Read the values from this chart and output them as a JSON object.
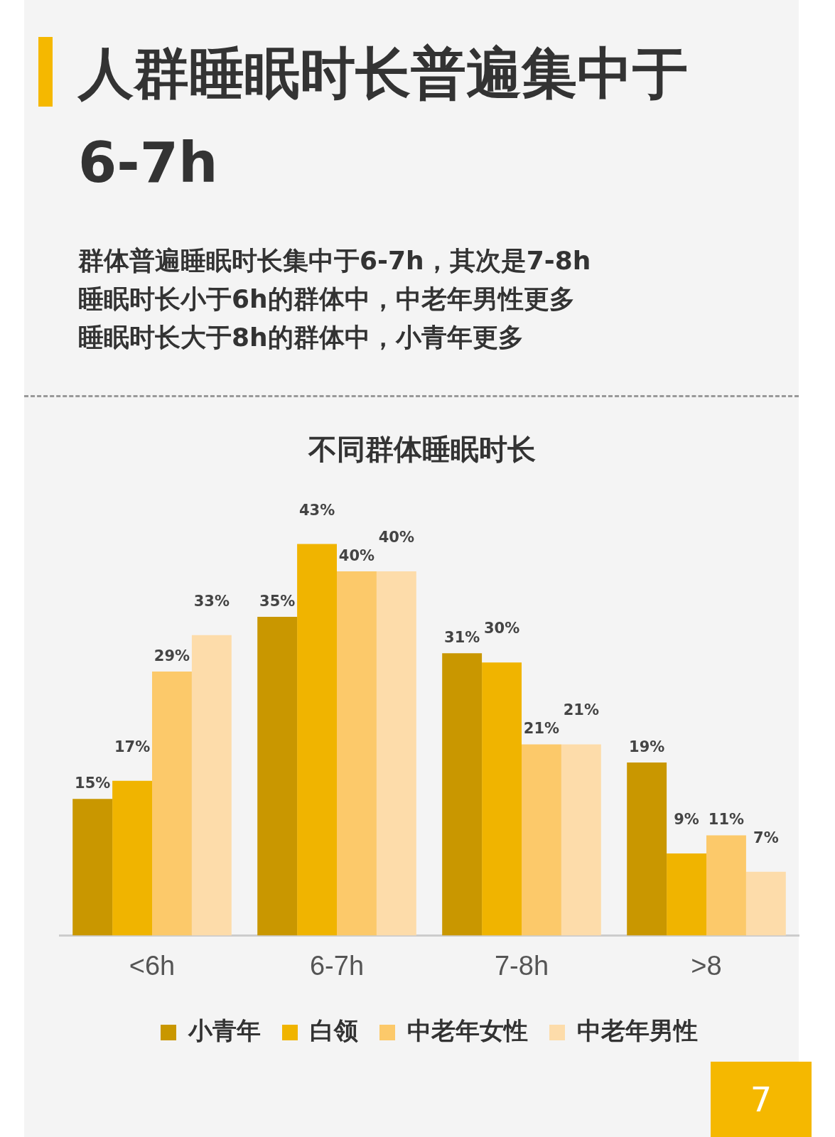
{
  "chart_data": {
    "type": "bar",
    "title": "人群睡眠时长普遍集中于6-7h",
    "annotations": [
      "群体普遍睡眠时长集中于6-7h，其次是7-8h",
      "睡眠时长小于6h的群体中，中老年男性更多",
      "睡眠时长大于8h的群体中，小青年更多",
      "不同群体睡眠时长",
      "7"
    ],
    "categories": [
      "<6h",
      "6-7h",
      "7-8h",
      ">8"
    ],
    "series": [
      {
        "name": "小青年",
        "color": "#c99700",
        "values": [
          15,
          35,
          31,
          19
        ],
        "value_labels": [
          "15%",
          "35%",
          "31%",
          "19%"
        ]
      },
      {
        "name": "白领",
        "color": "#f0b400",
        "values": [
          17,
          43,
          30,
          9
        ],
        "value_labels": [
          "17%",
          "43%",
          "30%",
          "9%"
        ]
      },
      {
        "name": "中老年女性",
        "color": "#fcc96a",
        "values": [
          29,
          40,
          21,
          11
        ],
        "value_labels": [
          "29%",
          "40%",
          "21%",
          "11%"
        ]
      },
      {
        "name": "中老年男性",
        "color": "#fddcaa",
        "values": [
          33,
          40,
          21,
          7
        ],
        "value_labels": [
          "33%",
          "40%",
          "21%",
          "7%"
        ]
      }
    ],
    "grid": false,
    "legend": "bottom"
  }
}
